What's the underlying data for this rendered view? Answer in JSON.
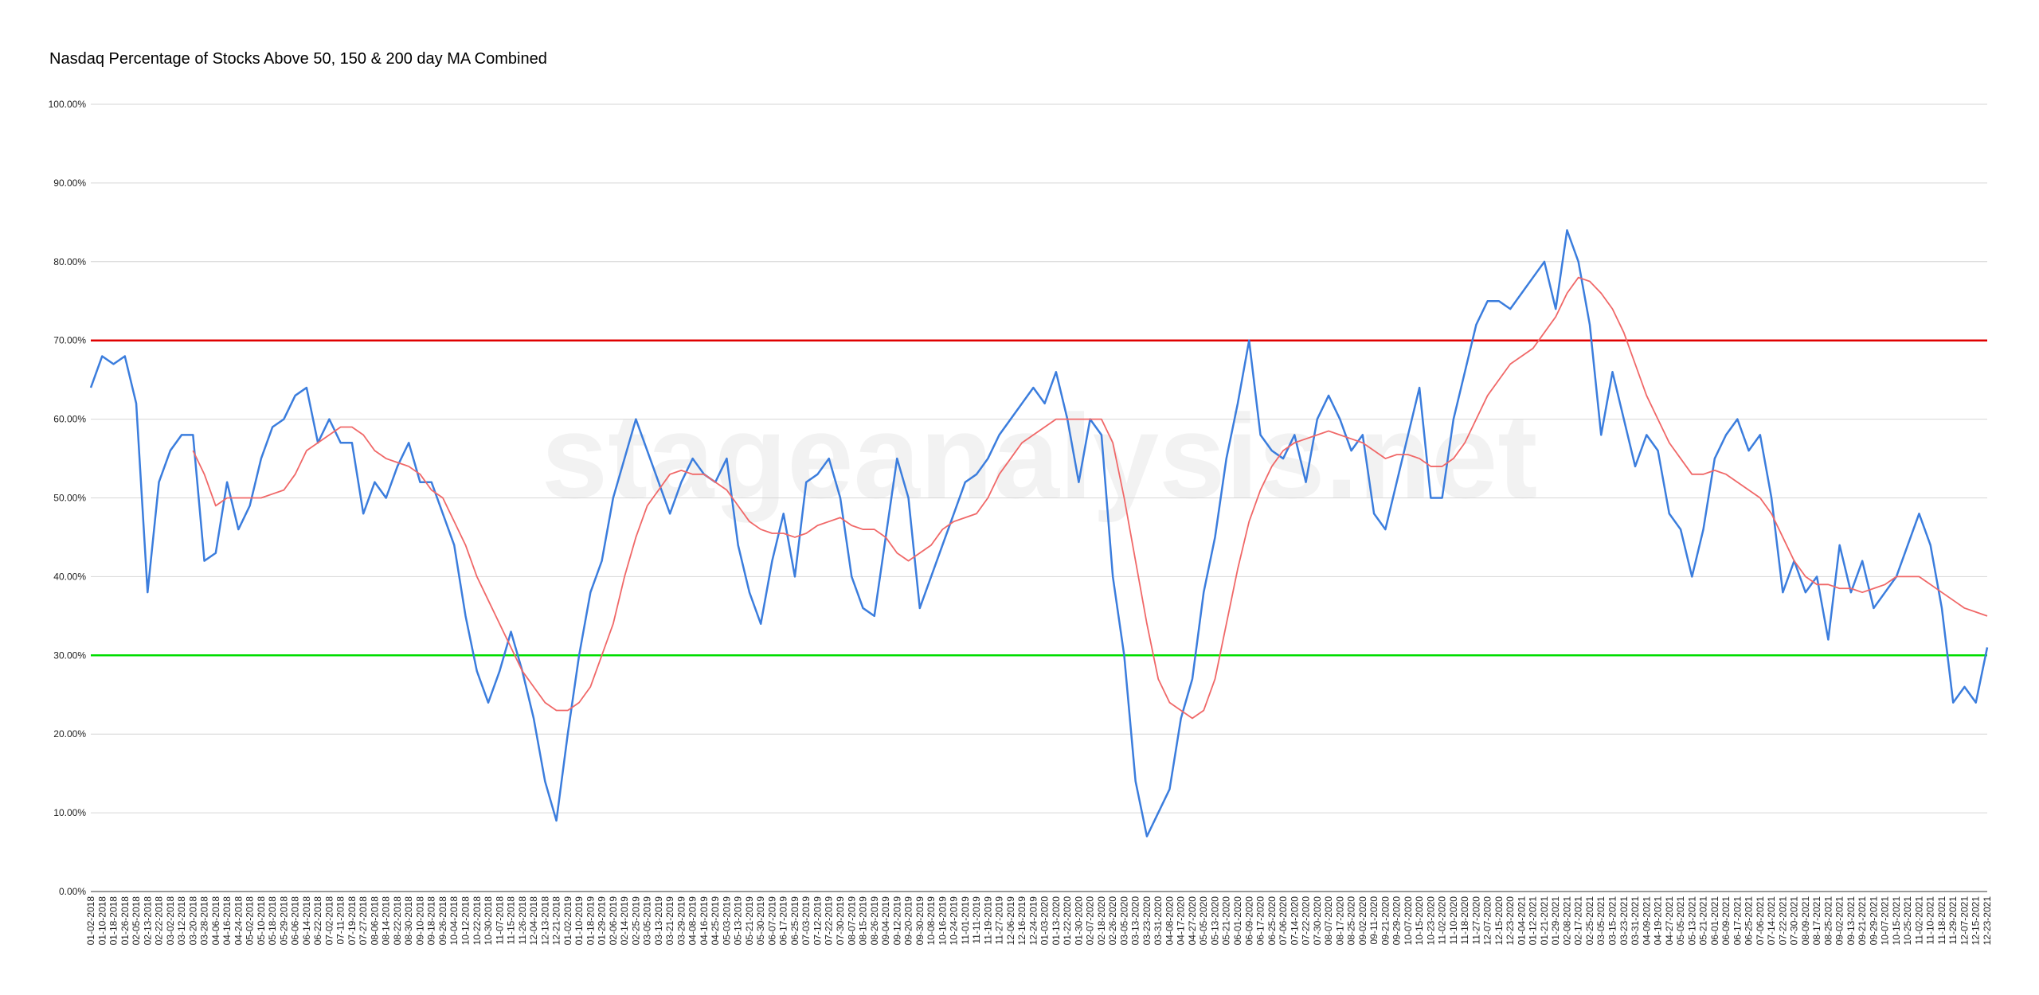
{
  "chart_data": {
    "type": "line",
    "title": "Nasdaq Percentage of Stocks Above 50, 150 & 200 day MA Combined",
    "watermark": "stageanalysis.net",
    "categories": [
      "01-02-2018",
      "01-10-2018",
      "01-18-2018",
      "01-26-2018",
      "02-05-2018",
      "02-13-2018",
      "02-22-2018",
      "03-02-2018",
      "03-12-2018",
      "03-20-2018",
      "03-28-2018",
      "04-06-2018",
      "04-16-2018",
      "04-24-2018",
      "05-02-2018",
      "05-10-2018",
      "05-18-2018",
      "05-29-2018",
      "06-06-2018",
      "06-14-2018",
      "06-22-2018",
      "07-02-2018",
      "07-11-2018",
      "07-19-2018",
      "07-27-2018",
      "08-06-2018",
      "08-14-2018",
      "08-22-2018",
      "08-30-2018",
      "09-10-2018",
      "09-18-2018",
      "09-26-2018",
      "10-04-2018",
      "10-12-2018",
      "10-22-2018",
      "10-30-2018",
      "11-07-2018",
      "11-15-2018",
      "11-26-2018",
      "12-04-2018",
      "12-13-2018",
      "12-21-2018",
      "01-02-2019",
      "01-10-2019",
      "01-18-2019",
      "01-29-2019",
      "02-06-2019",
      "02-14-2019",
      "02-25-2019",
      "03-05-2019",
      "03-13-2019",
      "03-21-2019",
      "03-29-2019",
      "04-08-2019",
      "04-16-2019",
      "04-25-2019",
      "05-03-2019",
      "05-13-2019",
      "05-21-2019",
      "05-30-2019",
      "06-07-2019",
      "06-17-2019",
      "06-25-2019",
      "07-03-2019",
      "07-12-2019",
      "07-22-2019",
      "07-30-2019",
      "08-07-2019",
      "08-15-2019",
      "08-26-2019",
      "09-04-2019",
      "09-12-2019",
      "09-20-2019",
      "09-30-2019",
      "10-08-2019",
      "10-16-2019",
      "10-24-2019",
      "11-01-2019",
      "11-11-2019",
      "11-19-2019",
      "11-27-2019",
      "12-06-2019",
      "12-16-2019",
      "12-24-2019",
      "01-03-2020",
      "01-13-2020",
      "01-22-2020",
      "01-30-2020",
      "02-07-2020",
      "02-18-2020",
      "02-26-2020",
      "03-05-2020",
      "03-13-2020",
      "03-23-2020",
      "03-31-2020",
      "04-08-2020",
      "04-17-2020",
      "04-27-2020",
      "05-05-2020",
      "05-13-2020",
      "05-21-2020",
      "06-01-2020",
      "06-09-2020",
      "06-17-2020",
      "06-25-2020",
      "07-06-2020",
      "07-14-2020",
      "07-22-2020",
      "07-30-2020",
      "08-07-2020",
      "08-17-2020",
      "08-25-2020",
      "09-02-2020",
      "09-11-2020",
      "09-21-2020",
      "09-29-2020",
      "10-07-2020",
      "10-15-2020",
      "10-23-2020",
      "11-02-2020",
      "11-10-2020",
      "11-18-2020",
      "11-27-2020",
      "12-07-2020",
      "12-15-2020",
      "12-23-2020",
      "01-04-2021",
      "01-12-2021",
      "01-21-2021",
      "01-29-2021",
      "02-08-2021",
      "02-17-2021",
      "02-25-2021",
      "03-05-2021",
      "03-15-2021",
      "03-23-2021",
      "03-31-2021",
      "04-09-2021",
      "04-19-2021",
      "04-27-2021",
      "05-05-2021",
      "05-13-2021",
      "05-21-2021",
      "06-01-2021",
      "06-09-2021",
      "06-17-2021",
      "06-25-2021",
      "07-06-2021",
      "07-14-2021",
      "07-22-2021",
      "07-30-2021",
      "08-09-2021",
      "08-17-2021",
      "08-25-2021",
      "09-02-2021",
      "09-13-2021",
      "09-21-2021",
      "09-29-2021",
      "10-07-2021",
      "10-15-2021",
      "10-25-2021",
      "11-02-2021",
      "11-10-2021",
      "11-18-2021",
      "11-29-2021",
      "12-07-2021",
      "12-15-2021",
      "12-23-2021"
    ],
    "series": [
      {
        "color": "#3b7ddd",
        "values": [
          64,
          68,
          67,
          68,
          62,
          38,
          52,
          56,
          58,
          58,
          42,
          43,
          52,
          46,
          49,
          55,
          59,
          60,
          63,
          64,
          57,
          60,
          57,
          57,
          48,
          52,
          50,
          54,
          57,
          52,
          52,
          48,
          44,
          35,
          28,
          24,
          28,
          33,
          28,
          22,
          14,
          9,
          20,
          30,
          38,
          42,
          50,
          55,
          60,
          56,
          52,
          48,
          52,
          55,
          53,
          52,
          55,
          44,
          38,
          34,
          42,
          48,
          40,
          52,
          53,
          55,
          50,
          40,
          36,
          35,
          45,
          55,
          50,
          36,
          40,
          44,
          48,
          52,
          53,
          55,
          58,
          60,
          62,
          64,
          62,
          66,
          60,
          52,
          60,
          58,
          40,
          30,
          14,
          7,
          10,
          13,
          22,
          27,
          38,
          45,
          55,
          62,
          70,
          58,
          56,
          55,
          58,
          52,
          60,
          63,
          60,
          56,
          58,
          48,
          46,
          52,
          58,
          64,
          50,
          50,
          60,
          66,
          72,
          75,
          75,
          74,
          76,
          78,
          80,
          74,
          84,
          80,
          72,
          58,
          66,
          60,
          54,
          58,
          56,
          48,
          46,
          40,
          46,
          55,
          58,
          60,
          56,
          58,
          50,
          38,
          42,
          38,
          40,
          32,
          44,
          38,
          42,
          36,
          38,
          40,
          44,
          48,
          44,
          36,
          24,
          26,
          24,
          31
        ]
      },
      {
        "color": "#f06868",
        "values": [
          null,
          null,
          null,
          null,
          null,
          null,
          null,
          null,
          null,
          56,
          53,
          49,
          50,
          50,
          50,
          50,
          50.5,
          51,
          53,
          56,
          57,
          58,
          59,
          59,
          58,
          56,
          55,
          54.5,
          54,
          53,
          51,
          50,
          47,
          44,
          40,
          37,
          34,
          31,
          28,
          26,
          24,
          23,
          23,
          24,
          26,
          30,
          34,
          40,
          45,
          49,
          51,
          53,
          53.5,
          53,
          53,
          52,
          51,
          49,
          47,
          46,
          45.5,
          45.5,
          45,
          45.5,
          46.5,
          47,
          47.5,
          46.5,
          46,
          46,
          45,
          43,
          42,
          43,
          44,
          46,
          47,
          47.5,
          48,
          50,
          53,
          55,
          57,
          58,
          59,
          60,
          60,
          60,
          60,
          60,
          57,
          50,
          42,
          34,
          27,
          24,
          23,
          22,
          23,
          27,
          34,
          41,
          47,
          51,
          54,
          56,
          57,
          57.5,
          58,
          58.5,
          58,
          57.5,
          57,
          56,
          55,
          55.5,
          55.5,
          55,
          54,
          54,
          55,
          57,
          60,
          63,
          65,
          67,
          68,
          69,
          71,
          73,
          76,
          78,
          77.5,
          76,
          74,
          71,
          67,
          63,
          60,
          57,
          55,
          53,
          53,
          53.5,
          53,
          52,
          51,
          50,
          48,
          45,
          42,
          40,
          39,
          39,
          38.5,
          38.5,
          38,
          38.5,
          39,
          40,
          40,
          40,
          39,
          38,
          37,
          36,
          35.5,
          35
        ]
      }
    ],
    "reference_lines": [
      {
        "value": 70,
        "color": "#e00000"
      },
      {
        "value": 30,
        "color": "#00dd00"
      }
    ],
    "ylim": [
      0,
      100
    ],
    "yticks": [
      {
        "value": 0,
        "label": "0.00%"
      },
      {
        "value": 10,
        "label": "10.00%"
      },
      {
        "value": 20,
        "label": "20.00%"
      },
      {
        "value": 30,
        "label": "30.00%"
      },
      {
        "value": 40,
        "label": "40.00%"
      },
      {
        "value": 50,
        "label": "50.00%"
      },
      {
        "value": 60,
        "label": "60.00%"
      },
      {
        "value": 70,
        "label": "70.00%"
      },
      {
        "value": 80,
        "label": "80.00%"
      },
      {
        "value": 90,
        "label": "90.00%"
      },
      {
        "value": 100,
        "label": "100.00%"
      }
    ],
    "grid": true
  }
}
